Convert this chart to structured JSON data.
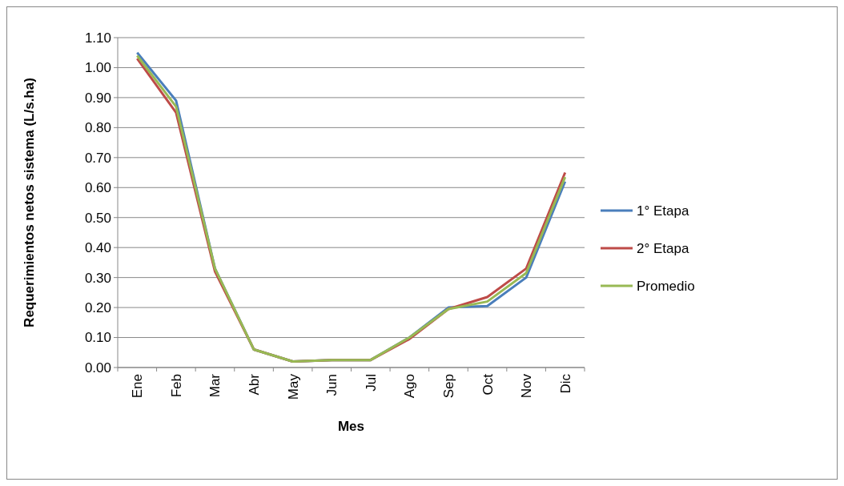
{
  "chart_data": {
    "type": "line",
    "xlabel": "Mes",
    "ylabel": "Requerimientos netos sistema (L/s.ha)",
    "categories": [
      "Ene",
      "Feb",
      "Mar",
      "Abr",
      "May",
      "Jun",
      "Jul",
      "Ago",
      "Sep",
      "Oct",
      "Nov",
      "Dic"
    ],
    "series": [
      {
        "name": "1° Etapa",
        "color": "#4a7ebb",
        "values": [
          1.05,
          0.89,
          0.33,
          0.06,
          0.02,
          0.025,
          0.025,
          0.1,
          0.2,
          0.205,
          0.3,
          0.62
        ]
      },
      {
        "name": "2° Etapa",
        "color": "#be4b48",
        "values": [
          1.03,
          0.85,
          0.32,
          0.06,
          0.02,
          0.025,
          0.025,
          0.095,
          0.195,
          0.235,
          0.33,
          0.65
        ]
      },
      {
        "name": "Promedio",
        "color": "#98b954",
        "values": [
          1.04,
          0.87,
          0.33,
          0.06,
          0.02,
          0.025,
          0.025,
          0.1,
          0.195,
          0.22,
          0.315,
          0.635
        ]
      }
    ],
    "ylim": [
      0,
      1.1
    ],
    "yticks": [
      {
        "value": 0,
        "label": "0.00"
      },
      {
        "value": 0.1,
        "label": "0.10"
      },
      {
        "value": 0.2,
        "label": "0.20"
      },
      {
        "value": 0.3,
        "label": "0.30"
      },
      {
        "value": 0.4,
        "label": "0.40"
      },
      {
        "value": 0.5,
        "label": "0.50"
      },
      {
        "value": 0.6,
        "label": "0.60"
      },
      {
        "value": 0.7,
        "label": "0.70"
      },
      {
        "value": 0.8,
        "label": "0.80"
      },
      {
        "value": 0.9,
        "label": "0.90"
      },
      {
        "value": 1.0,
        "label": "1.00"
      },
      {
        "value": 1.1,
        "label": "1.10"
      }
    ],
    "grid": "y",
    "legend": "right",
    "marker": "none",
    "line_style": "solid"
  }
}
